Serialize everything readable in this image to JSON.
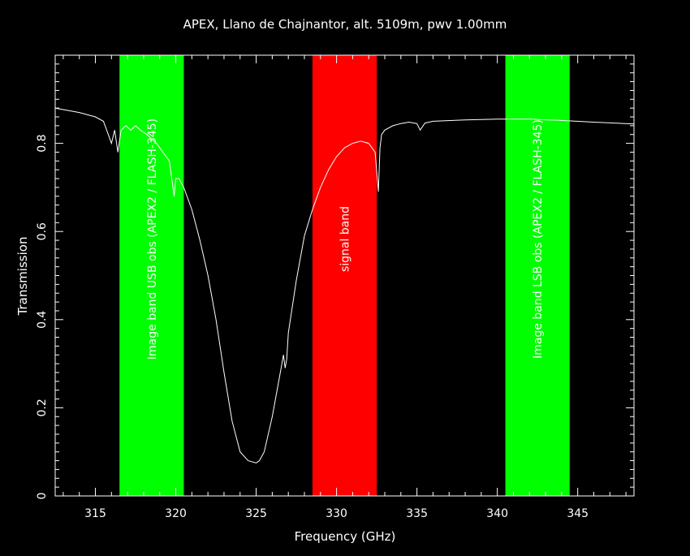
{
  "chart_data": {
    "type": "line",
    "title": "APEX, Llano de Chajnantor, alt. 5109m, pwv 1.00mm",
    "xlabel": "Frequency (GHz)",
    "ylabel": "Transmission",
    "xlim": [
      312.5,
      348.5
    ],
    "ylim": [
      0,
      1.0
    ],
    "grid": false,
    "x_ticks": [
      315,
      320,
      325,
      330,
      335,
      340,
      345
    ],
    "y_ticks": [
      0,
      0.2,
      0.4,
      0.6,
      0.8
    ],
    "y_tick_labels": [
      "0",
      "0.2",
      "0.4",
      "0.6",
      "0.8"
    ],
    "bands": [
      {
        "label": "Image band USB obs (APEX2 / FLASH-345)",
        "range": [
          316.5,
          320.5
        ],
        "color": "#00ff00"
      },
      {
        "label": "signal band",
        "range": [
          328.5,
          332.5
        ],
        "color": "#ff0000"
      },
      {
        "label": "Image band LSB obs (APEX2 / FLASH-345)",
        "range": [
          340.5,
          344.5
        ],
        "color": "#00ff00"
      }
    ],
    "series": [
      {
        "color": "#ffffff",
        "x": [
          312.5,
          314.0,
          315.0,
          315.5,
          315.8,
          316.0,
          316.2,
          316.4,
          316.6,
          316.9,
          317.2,
          317.5,
          317.8,
          318.2,
          318.8,
          319.2,
          319.6,
          319.9,
          320.0,
          320.2,
          320.5,
          321.0,
          321.5,
          322.0,
          322.5,
          323.0,
          323.5,
          324.0,
          324.5,
          325.0,
          325.2,
          325.5,
          326.0,
          326.5,
          326.7,
          326.8,
          326.9,
          327.0,
          327.5,
          328.0,
          328.5,
          329.0,
          329.5,
          330.0,
          330.5,
          331.0,
          331.5,
          332.0,
          332.4,
          332.6,
          332.7,
          332.8,
          333.0,
          333.5,
          334.0,
          334.5,
          335.0,
          335.2,
          335.5,
          336.0,
          338.0,
          340.0,
          342.0,
          344.0,
          346.0,
          348.5
        ],
        "y": [
          0.88,
          0.87,
          0.86,
          0.85,
          0.82,
          0.8,
          0.83,
          0.78,
          0.83,
          0.84,
          0.83,
          0.84,
          0.83,
          0.82,
          0.8,
          0.78,
          0.76,
          0.68,
          0.72,
          0.72,
          0.7,
          0.65,
          0.58,
          0.5,
          0.4,
          0.28,
          0.17,
          0.1,
          0.08,
          0.075,
          0.08,
          0.1,
          0.18,
          0.28,
          0.32,
          0.29,
          0.31,
          0.37,
          0.49,
          0.59,
          0.65,
          0.7,
          0.74,
          0.77,
          0.79,
          0.8,
          0.805,
          0.8,
          0.78,
          0.69,
          0.79,
          0.82,
          0.83,
          0.84,
          0.845,
          0.848,
          0.845,
          0.83,
          0.846,
          0.85,
          0.853,
          0.855,
          0.855,
          0.852,
          0.848,
          0.844
        ]
      }
    ]
  }
}
